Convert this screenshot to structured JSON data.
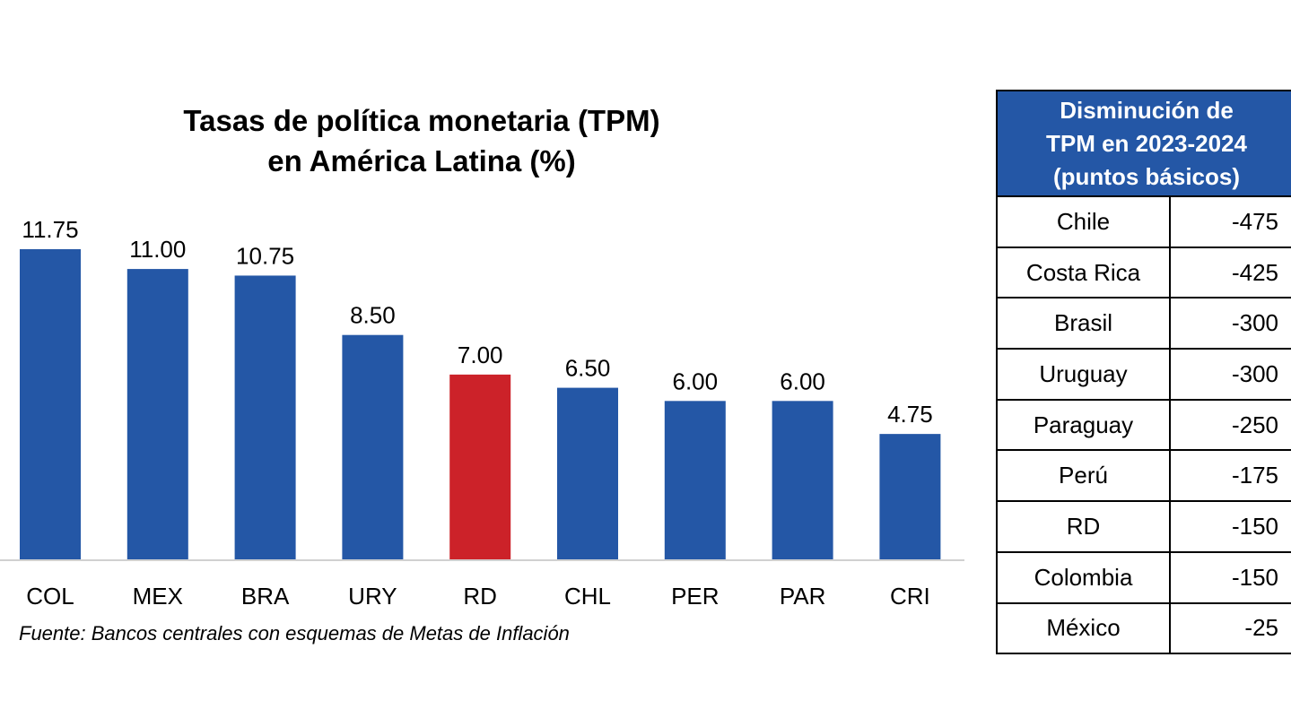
{
  "chart_data": {
    "type": "bar",
    "title": [
      "Tasas de política monetaria (TPM)",
      "en América Latina (%)"
    ],
    "categories": [
      "COL",
      "MEX",
      "BRA",
      "URY",
      "RD",
      "CHL",
      "PER",
      "PAR",
      "CRI"
    ],
    "values": [
      11.75,
      11.0,
      10.75,
      8.5,
      7.0,
      6.5,
      6.0,
      6.0,
      4.75
    ],
    "data_labels": [
      "11.75",
      "11.00",
      "10.75",
      "8.50",
      "7.00",
      "6.50",
      "6.00",
      "6.00",
      "4.75"
    ],
    "highlight_category": "RD",
    "ylim": [
      0,
      11.75
    ],
    "xlabel": "",
    "ylabel": "",
    "grid": false
  },
  "colors": {
    "bar": "#2457a6",
    "highlight": "#cc2229",
    "axis": "#d0d0d0"
  },
  "source": "Fuente: Bancos centrales con esquemas de Metas de Inflación",
  "table": {
    "header": [
      "Disminución de",
      "TPM en 2023-2024",
      "(puntos básicos)"
    ],
    "rows": [
      {
        "country": "Chile",
        "value": "-475"
      },
      {
        "country": "Costa Rica",
        "value": "-425"
      },
      {
        "country": "Brasil",
        "value": "-300"
      },
      {
        "country": "Uruguay",
        "value": "-300"
      },
      {
        "country": "Paraguay",
        "value": "-250"
      },
      {
        "country": "Perú",
        "value": "-175"
      },
      {
        "country": "RD",
        "value": "-150"
      },
      {
        "country": "Colombia",
        "value": "-150"
      },
      {
        "country": "México",
        "value": "-25"
      }
    ]
  }
}
